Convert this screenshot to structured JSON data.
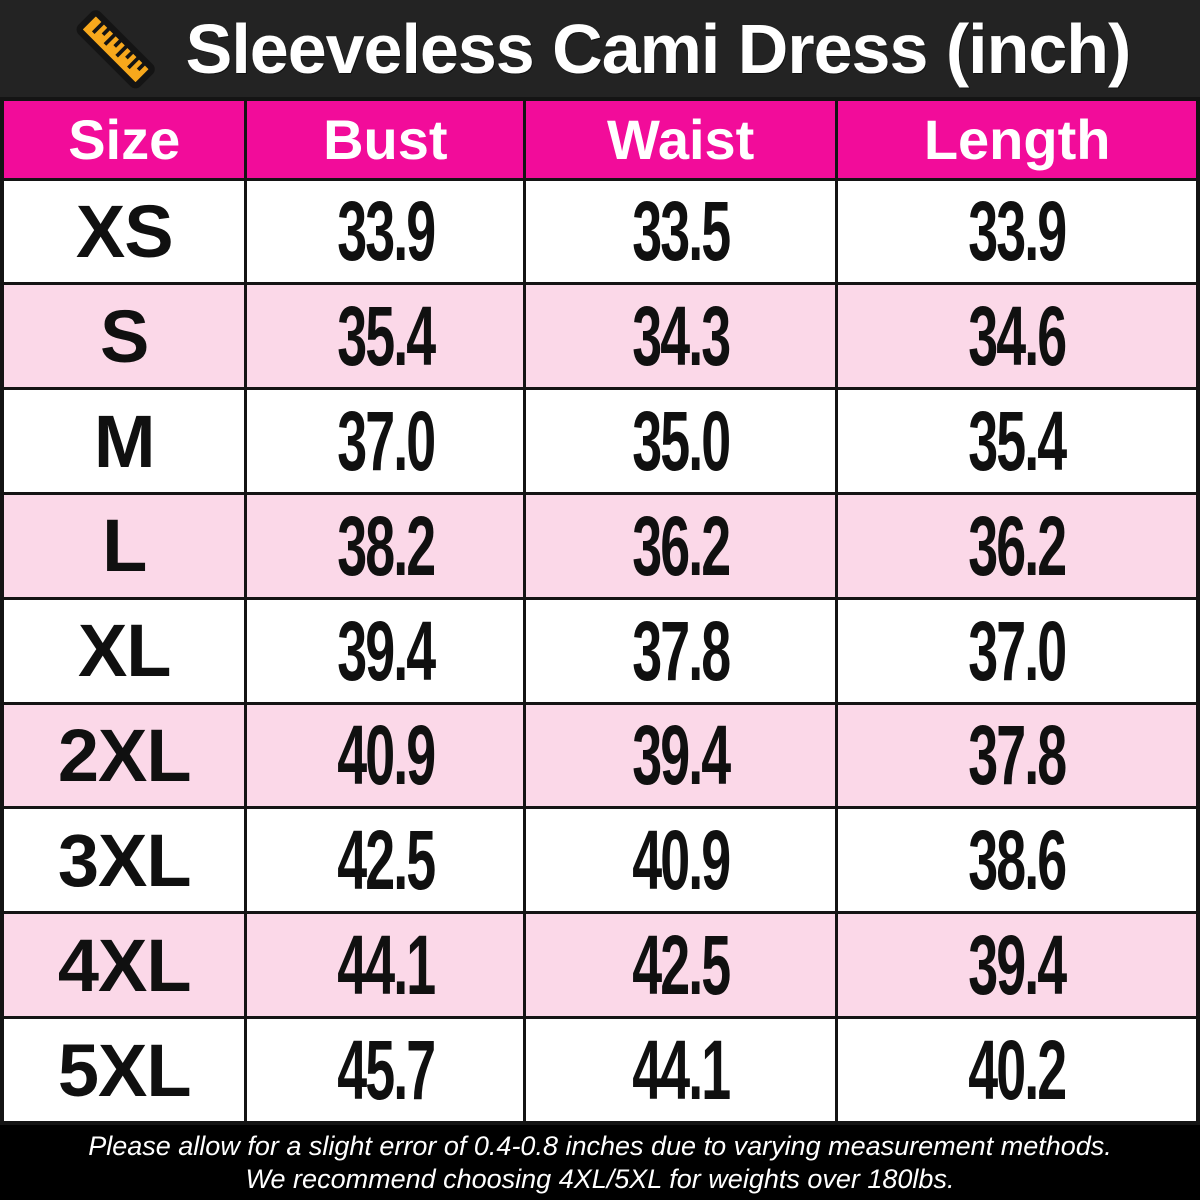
{
  "title_bar": {
    "title": "Sleeveless Cami Dress (inch)",
    "icon": "ruler-icon"
  },
  "table": {
    "columns": [
      "Size",
      "Bust",
      "Waist",
      "Length"
    ],
    "rows": [
      {
        "size": "XS",
        "values": [
          "33.9",
          "33.5",
          "33.9"
        ]
      },
      {
        "size": "S",
        "values": [
          "35.4",
          "34.3",
          "34.6"
        ]
      },
      {
        "size": "M",
        "values": [
          "37.0",
          "35.0",
          "35.4"
        ]
      },
      {
        "size": "L",
        "values": [
          "38.2",
          "36.2",
          "36.2"
        ]
      },
      {
        "size": "XL",
        "values": [
          "39.4",
          "37.8",
          "37.0"
        ]
      },
      {
        "size": "2XL",
        "values": [
          "40.9",
          "39.4",
          "37.8"
        ]
      },
      {
        "size": "3XL",
        "values": [
          "42.5",
          "40.9",
          "38.6"
        ]
      },
      {
        "size": "4XL",
        "values": [
          "44.1",
          "42.5",
          "39.4"
        ]
      },
      {
        "size": "5XL",
        "values": [
          "45.7",
          "44.1",
          "40.2"
        ]
      }
    ]
  },
  "footer": {
    "line1": "Please allow for a slight error of 0.4-0.8 inches due to varying measurement methods.",
    "line2": "We recommend choosing 4XL/5XL for weights over 180lbs."
  },
  "colors": {
    "accent_pink": "#F20C9A",
    "row_pink": "#FBD8E8",
    "bar_dark": "#232323",
    "footer_black": "#000000",
    "border_black": "#141414",
    "ruler_orange": "#F7A81C"
  },
  "chart_data": {
    "type": "table",
    "title": "Sleeveless Cami Dress (inch)",
    "unit": "inch",
    "columns": [
      "Size",
      "Bust",
      "Waist",
      "Length"
    ],
    "rows": [
      [
        "XS",
        33.9,
        33.5,
        33.9
      ],
      [
        "S",
        35.4,
        34.3,
        34.6
      ],
      [
        "M",
        37.0,
        35.0,
        35.4
      ],
      [
        "L",
        38.2,
        36.2,
        36.2
      ],
      [
        "XL",
        39.4,
        37.8,
        37.0
      ],
      [
        "2XL",
        40.9,
        39.4,
        37.8
      ],
      [
        "3XL",
        42.5,
        40.9,
        38.6
      ],
      [
        "4XL",
        44.1,
        42.5,
        39.4
      ],
      [
        "5XL",
        45.7,
        44.1,
        40.2
      ]
    ],
    "notes": [
      "Please allow for a slight error of 0.4-0.8 inches due to varying measurement methods.",
      "We recommend choosing 4XL/5XL for weights over 180lbs."
    ]
  }
}
